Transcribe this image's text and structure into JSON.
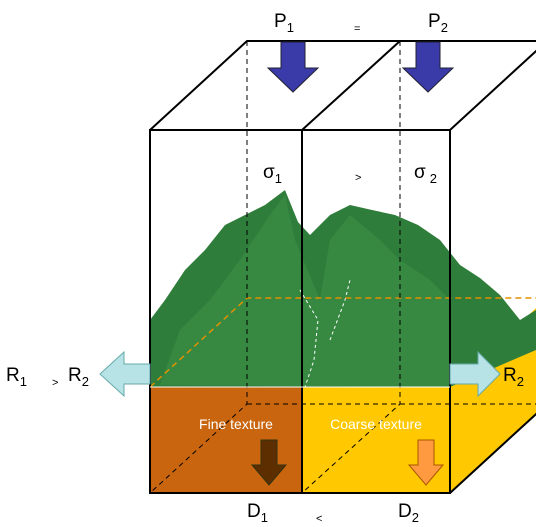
{
  "labels": {
    "p1": {
      "main": "P",
      "sub": "1"
    },
    "eq": "=",
    "p2": {
      "main": "P",
      "sub": "2"
    },
    "sigma1": {
      "main": "σ",
      "sub": "1"
    },
    "gt": ">",
    "sigma2": {
      "main": "σ",
      "sub": "2"
    },
    "r1": {
      "main": "R",
      "sub": "1"
    },
    "gt_r": ">",
    "r2_left": {
      "main": "R",
      "sub": "2"
    },
    "r2_right": {
      "main": "R",
      "sub": "2"
    },
    "fine": "Fine texture",
    "coarse": "Coarse texture",
    "d1": {
      "main": "D",
      "sub": "1"
    },
    "lt": "<",
    "d2": {
      "main": "D",
      "sub": "2"
    }
  }
}
